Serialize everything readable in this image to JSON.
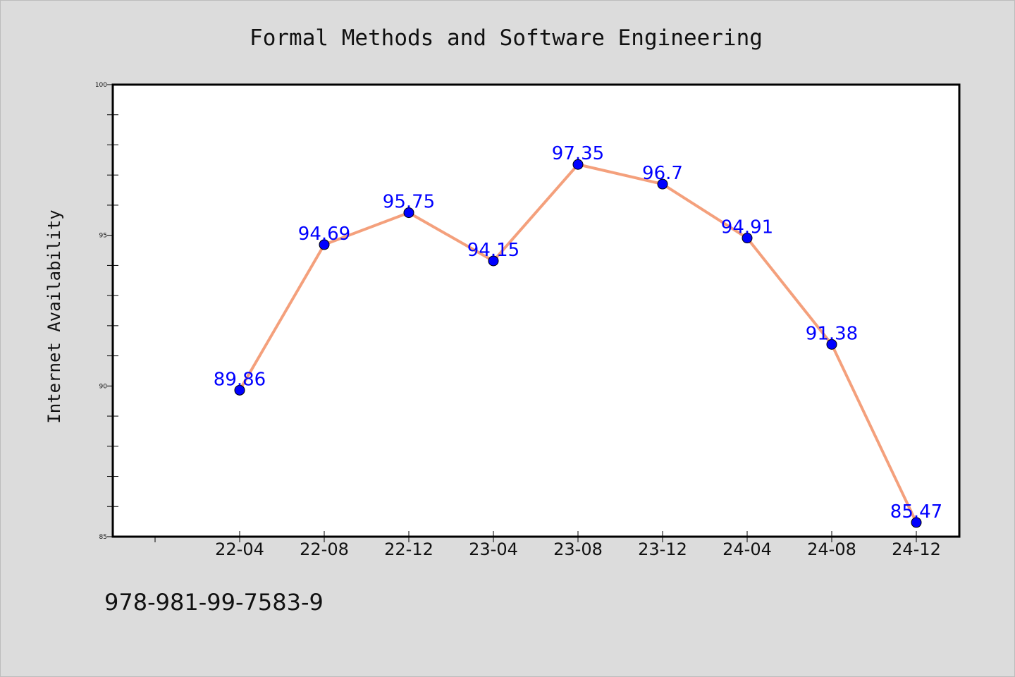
{
  "chart_data": {
    "type": "line",
    "title": "Formal Methods and Software Engineering",
    "xlabel": "",
    "ylabel": "Internet Availability",
    "categories": [
      "22-04",
      "22-08",
      "22-12",
      "23-04",
      "23-08",
      "23-12",
      "24-04",
      "24-08",
      "24-12"
    ],
    "series": [
      {
        "values": [
          89.86,
          94.69,
          95.75,
          94.15,
          97.35,
          96.7,
          94.91,
          91.38,
          85.47
        ],
        "data_labels": [
          "89.86",
          "94.69",
          "95.75",
          "94.15",
          "97.35",
          "96.7",
          "94.91",
          "91.38",
          "85.47"
        ]
      }
    ],
    "ylim": [
      85,
      100
    ],
    "yticks": [
      85,
      90,
      95,
      100
    ],
    "grid": false,
    "line_color": "#f4a07c",
    "marker_color": "#0000ff",
    "label_color": "#0000ff"
  },
  "footnote": "978-981-99-7583-9"
}
